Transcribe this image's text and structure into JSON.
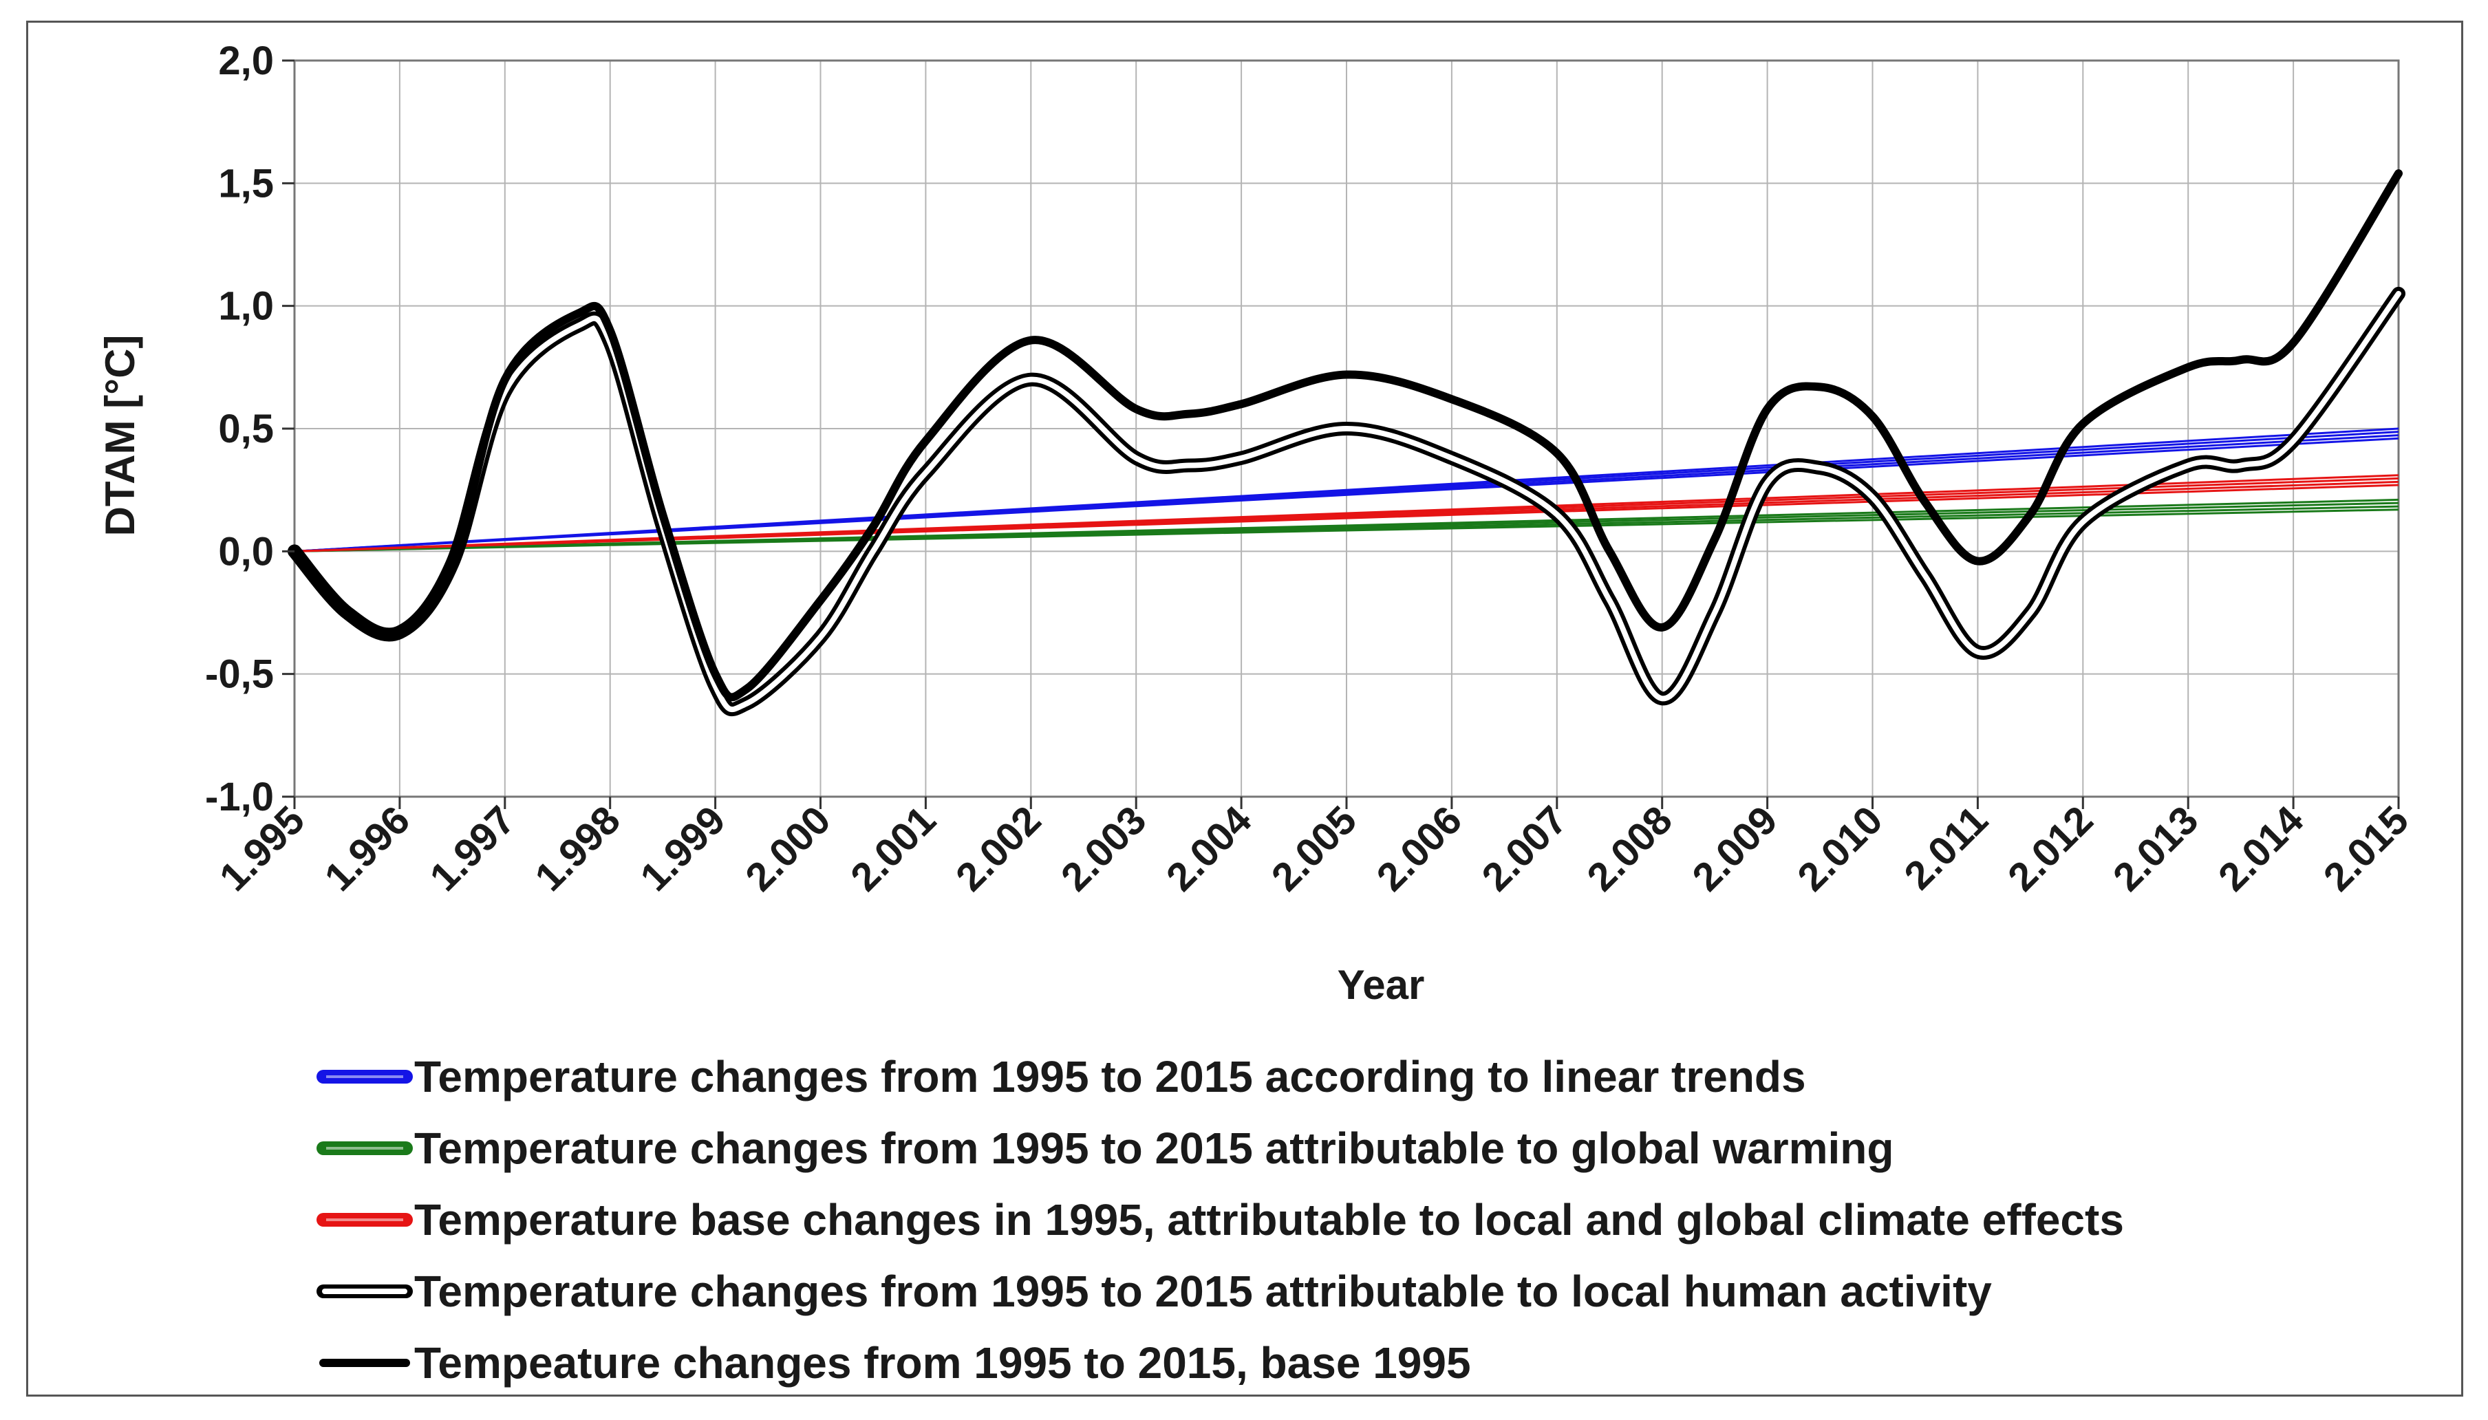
{
  "chart_data": {
    "type": "line",
    "title": "",
    "xlabel": "Year",
    "ylabel": "DTAM [°C]",
    "ylim": [
      -1.0,
      2.0
    ],
    "grid": true,
    "categories": [
      "1.995",
      "1.996",
      "1.997",
      "1.998",
      "1.999",
      "2.000",
      "2.001",
      "2.002",
      "2.003",
      "2.004",
      "2.005",
      "2.006",
      "2.007",
      "2.008",
      "2.009",
      "2.010",
      "2.011",
      "2.012",
      "2.013",
      "2.014",
      "2.015"
    ],
    "y_ticks": [
      -1.0,
      -0.5,
      0.0,
      0.5,
      1.0,
      1.5,
      2.0
    ],
    "y_tick_labels": [
      "-1,0",
      "-0,5",
      "0,0",
      "0,5",
      "1,0",
      "1,5",
      "2,0"
    ],
    "legend_position": "bottom",
    "series": [
      {
        "name": "Temperature changes from 1995 to 2015 according to linear trends",
        "color": "#1414e6",
        "style": "double-thin-bundle",
        "x": [
          1995,
          2015
        ],
        "values": [
          0.0,
          0.48
        ]
      },
      {
        "name": "Temperature changes from 1995 to 2015 attributable to global warming",
        "color": "#1a7a1a",
        "style": "double-thin-bundle",
        "x": [
          1995,
          2015
        ],
        "values": [
          0.0,
          0.19
        ]
      },
      {
        "name": "Temperature base changes in 1995, attributable to local and global climate effects",
        "color": "#e61414",
        "style": "double-thin-bundle",
        "x": [
          1995,
          2015
        ],
        "values": [
          0.0,
          0.29
        ]
      },
      {
        "name": "Temperature changes from 1995 to 2015 attributable to local human activity",
        "color": "#000000",
        "style": "double-outline",
        "x": [
          1995,
          1995.5,
          1996,
          1996.5,
          1997,
          1997.7,
          1998,
          1998.5,
          1999,
          1999.3,
          2000,
          2000.5,
          2001,
          2002,
          2003,
          2003.5,
          2004,
          2005,
          2006,
          2007,
          2007.5,
          2008,
          2008.5,
          2009,
          2009.5,
          2010,
          2010.5,
          2011,
          2011.5,
          2012,
          2013,
          2013.5,
          2014,
          2015
        ],
        "values": [
          0.0,
          -0.25,
          -0.33,
          -0.05,
          0.65,
          0.92,
          0.85,
          0.1,
          -0.55,
          -0.62,
          -0.35,
          0.0,
          0.32,
          0.7,
          0.38,
          0.35,
          0.38,
          0.5,
          0.38,
          0.15,
          -0.2,
          -0.6,
          -0.25,
          0.28,
          0.34,
          0.22,
          -0.1,
          -0.41,
          -0.25,
          0.12,
          0.35,
          0.35,
          0.45,
          1.05
        ]
      },
      {
        "name": "Tempeature changes from 1995 to 2015, base 1995",
        "color": "#000000",
        "style": "thick",
        "x": [
          1995,
          1995.5,
          1996,
          1996.5,
          1997,
          1997.7,
          1998,
          1998.5,
          1999,
          1999.3,
          2000,
          2000.5,
          2001,
          2002,
          2003,
          2003.5,
          2004,
          2005,
          2006,
          2007,
          2007.5,
          2008,
          2008.5,
          2009,
          2009.5,
          2010,
          2010.5,
          2011,
          2011.5,
          2012,
          2013,
          2013.5,
          2014,
          2015
        ],
        "values": [
          0.0,
          -0.25,
          -0.33,
          -0.05,
          0.7,
          0.97,
          0.9,
          0.15,
          -0.5,
          -0.56,
          -0.2,
          0.1,
          0.45,
          0.86,
          0.58,
          0.56,
          0.6,
          0.72,
          0.62,
          0.4,
          0.0,
          -0.31,
          0.05,
          0.58,
          0.67,
          0.55,
          0.2,
          -0.04,
          0.15,
          0.52,
          0.75,
          0.78,
          0.85,
          1.54
        ]
      }
    ]
  }
}
